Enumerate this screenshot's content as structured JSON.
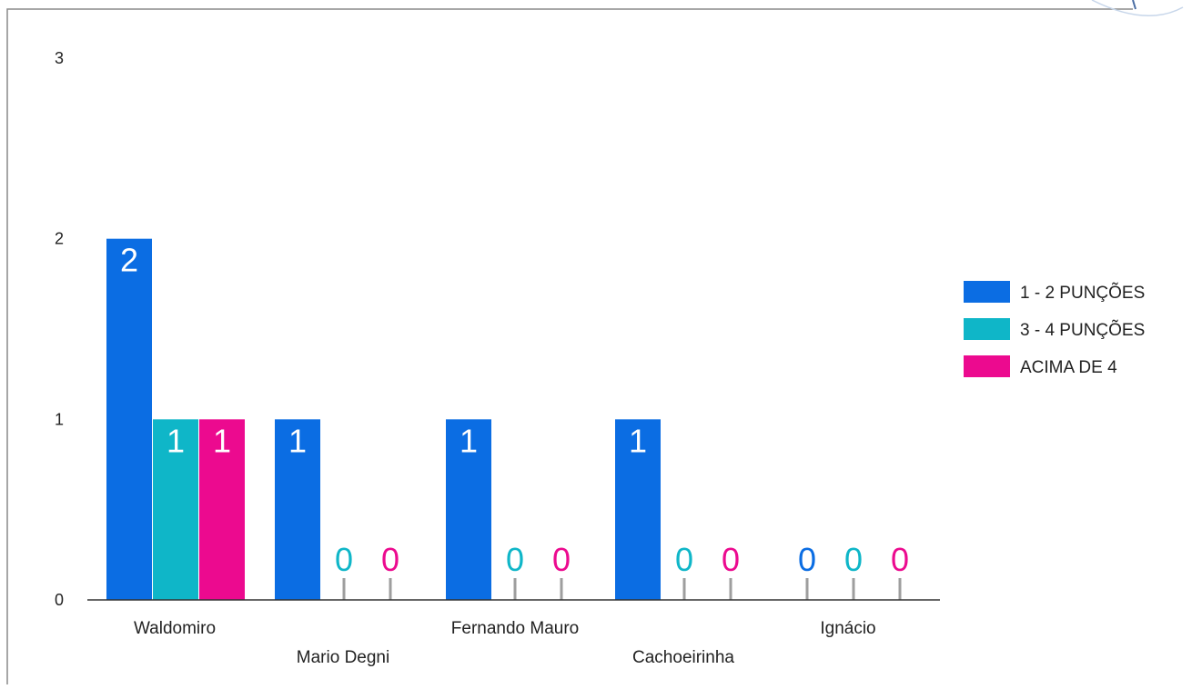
{
  "chart_data": {
    "type": "bar",
    "categories": [
      "Waldomiro",
      "Mario Degni",
      "Fernando Mauro",
      "Cachoeirinha",
      "Ignácio"
    ],
    "series": [
      {
        "name": "1 - 2 PUNÇÕES",
        "color": "#0b6de3",
        "values": [
          2,
          1,
          1,
          1,
          0
        ]
      },
      {
        "name": "3 - 4 PUNÇÕES",
        "color": "#0fb6c8",
        "values": [
          1,
          0,
          0,
          0,
          0
        ]
      },
      {
        "name": "ACIMA DE 4",
        "color": "#ec0a8f",
        "values": [
          1,
          0,
          0,
          0,
          0
        ]
      }
    ],
    "yticks": [
      "0",
      "1",
      "2",
      "3"
    ],
    "ylim": [
      0,
      3
    ],
    "title": "",
    "xlabel": "",
    "ylabel": "",
    "legend_position": "right",
    "grid": false
  }
}
